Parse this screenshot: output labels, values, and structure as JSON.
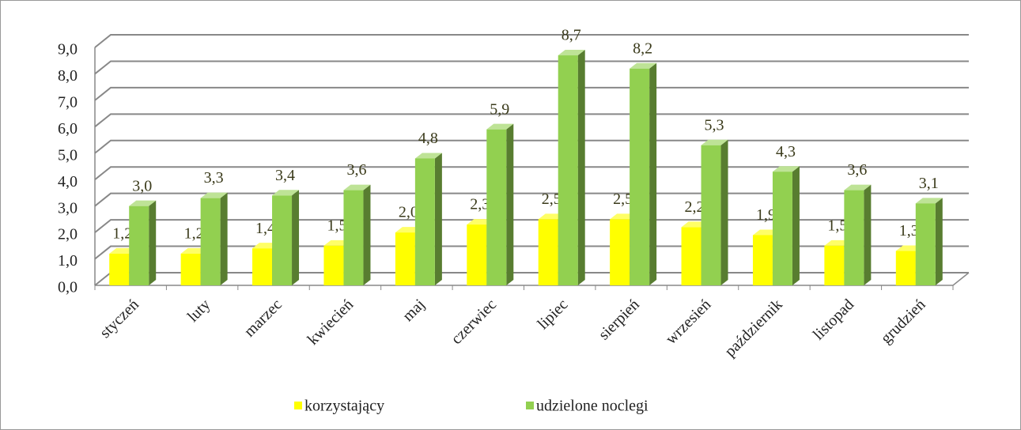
{
  "chart_data": {
    "type": "bar3d",
    "categories": [
      "styczeń",
      "luty",
      "marzec",
      "kwiecień",
      "maj",
      "czerwiec",
      "lipiec",
      "sierpień",
      "wrzesień",
      "październik",
      "listopad",
      "grudzień"
    ],
    "series": [
      {
        "name": "korzystający",
        "color": "#ffff00",
        "values": [
          1.2,
          1.2,
          1.4,
          1.5,
          2.0,
          2.3,
          2.5,
          2.5,
          2.2,
          1.9,
          1.5,
          1.3
        ],
        "value_labels": [
          "1,2",
          "1,2",
          "1,4",
          "1,5",
          "2,0",
          "2,3",
          "2,5",
          "2,5",
          "2,2",
          "1,9",
          "1,5",
          "1,3"
        ]
      },
      {
        "name": "udzielone noclegi",
        "color": "#92d050",
        "values": [
          3.0,
          3.3,
          3.4,
          3.6,
          4.8,
          5.9,
          8.7,
          8.2,
          5.3,
          4.3,
          3.6,
          3.1
        ],
        "value_labels": [
          "3,0",
          "3,3",
          "3,4",
          "3,6",
          "4,8",
          "5,9",
          "8,7",
          "8,2",
          "5,3",
          "4,3",
          "3,6",
          "3,1"
        ]
      }
    ],
    "ylim": [
      0,
      9
    ],
    "yticks": [
      {
        "value": 0,
        "label": "0,0"
      },
      {
        "value": 1,
        "label": "1,0"
      },
      {
        "value": 2,
        "label": "2,0"
      },
      {
        "value": 3,
        "label": "3,0"
      },
      {
        "value": 4,
        "label": "4,0"
      },
      {
        "value": 5,
        "label": "5,0"
      },
      {
        "value": 6,
        "label": "6,0"
      },
      {
        "value": 7,
        "label": "7,0"
      },
      {
        "value": 8,
        "label": "8,0"
      },
      {
        "value": 9,
        "label": "9,0"
      }
    ],
    "grid": true,
    "legend": "bottom"
  }
}
